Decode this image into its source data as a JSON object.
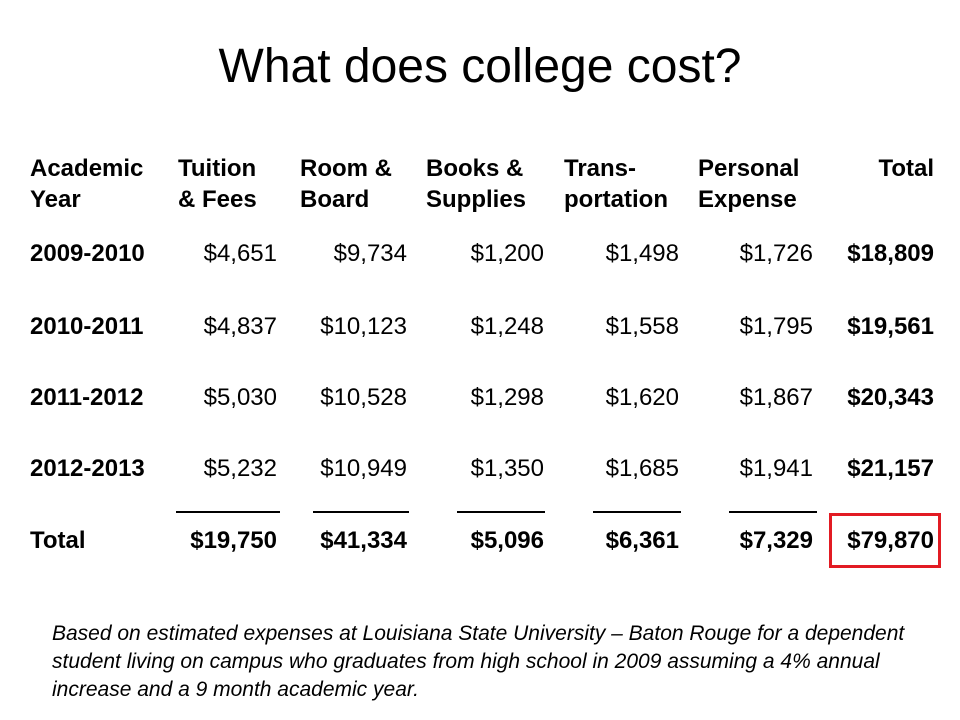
{
  "title": "What does college cost?",
  "table": {
    "headers": [
      [
        "Academic",
        "Year"
      ],
      [
        "Tuition",
        "& Fees"
      ],
      [
        "Room &",
        "Board"
      ],
      [
        "Books &",
        "Supplies"
      ],
      [
        "Trans-",
        "portation"
      ],
      [
        "Personal",
        "Expense"
      ],
      [
        "Total",
        ""
      ]
    ],
    "rows": [
      [
        "2009-2010",
        "$4,651",
        "$9,734",
        "$1,200",
        "$1,498",
        "$1,726",
        "$18,809"
      ],
      [
        "2010-2011",
        "$4,837",
        "$10,123",
        "$1,248",
        "$1,558",
        "$1,795",
        "$19,561"
      ],
      [
        "2011-2012",
        "$5,030",
        "$10,528",
        "$1,298",
        "$1,620",
        "$1,867",
        "$20,343"
      ],
      [
        "2012-2013",
        "$5,232",
        "$10,949",
        "$1,350",
        "$1,685",
        "$1,941",
        "$21,157"
      ]
    ],
    "total_row": [
      "Total",
      "$19,750",
      "$41,334",
      "$5,096",
      "$6,361",
      "$7,329",
      "$79,870"
    ]
  },
  "highlight_color": "#e21b23",
  "footnote": "Based on estimated expenses at Louisiana State University – Baton Rouge for a dependent student living on campus who graduates from high school in 2009 assuming a 4% annual increase and a 9 month academic year."
}
